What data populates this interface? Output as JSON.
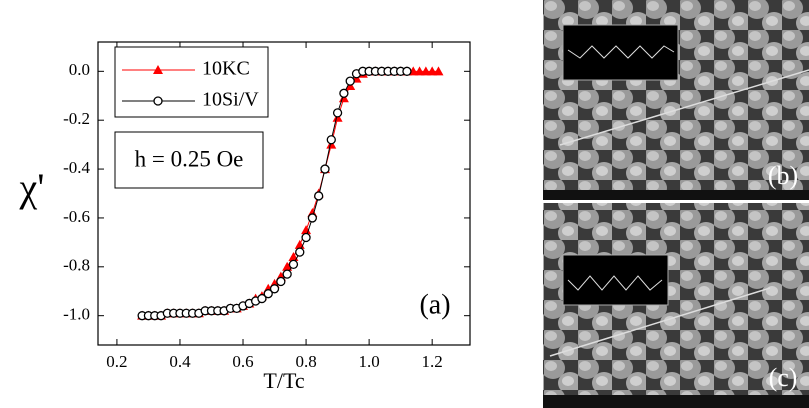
{
  "chart_data": {
    "type": "scatter-line",
    "x_label": "T/Tc",
    "y_label": "χ'",
    "annotation": "h = 0.25 Oe",
    "panel_label": "(a)",
    "xlim": [
      0.14,
      1.32
    ],
    "ylim": [
      -1.12,
      0.12
    ],
    "xticks": [
      0.2,
      0.4,
      0.6,
      0.8,
      {
        "value": 1.0,
        "label": "1.0"
      },
      1.2
    ],
    "yticks": [
      {
        "value": 0,
        "label": "0.0"
      },
      -0.2,
      -0.4,
      -0.6,
      -0.8,
      {
        "value": -1.0,
        "label": "-1.0"
      }
    ],
    "legend": "upper left",
    "series": [
      {
        "name": "10KC",
        "color": "#ff0000",
        "marker": "triangle",
        "x": [
          0.28,
          0.3,
          0.32,
          0.34,
          0.36,
          0.38,
          0.4,
          0.42,
          0.44,
          0.46,
          0.48,
          0.5,
          0.52,
          0.54,
          0.56,
          0.58,
          0.6,
          0.62,
          0.64,
          0.66,
          0.68,
          0.7,
          0.72,
          0.74,
          0.76,
          0.78,
          0.8,
          0.82,
          0.84,
          0.86,
          0.88,
          0.9,
          0.92,
          0.94,
          0.96,
          0.98,
          1.0,
          1.02,
          1.04,
          1.06,
          1.08,
          1.1,
          1.12,
          1.14,
          1.16,
          1.18,
          1.2,
          1.22
        ],
        "values": [
          -1.0,
          -1.0,
          -1.0,
          -1.0,
          -0.99,
          -0.99,
          -0.99,
          -0.99,
          -0.99,
          -0.99,
          -0.98,
          -0.98,
          -0.98,
          -0.98,
          -0.97,
          -0.97,
          -0.96,
          -0.95,
          -0.93,
          -0.92,
          -0.89,
          -0.87,
          -0.84,
          -0.8,
          -0.76,
          -0.71,
          -0.65,
          -0.58,
          -0.5,
          -0.4,
          -0.3,
          -0.19,
          -0.11,
          -0.06,
          -0.03,
          -0.01,
          0,
          0,
          0,
          0,
          0,
          0,
          0,
          0,
          0,
          0,
          0,
          0
        ]
      },
      {
        "name": "10Si/V",
        "color": "#000000",
        "marker": "circle",
        "x": [
          0.28,
          0.3,
          0.32,
          0.34,
          0.36,
          0.38,
          0.4,
          0.42,
          0.44,
          0.46,
          0.48,
          0.5,
          0.52,
          0.54,
          0.56,
          0.58,
          0.6,
          0.62,
          0.64,
          0.66,
          0.68,
          0.7,
          0.72,
          0.74,
          0.76,
          0.78,
          0.8,
          0.82,
          0.84,
          0.86,
          0.88,
          0.9,
          0.92,
          0.94,
          0.96,
          0.98,
          1.0,
          1.02,
          1.04,
          1.06,
          1.08,
          1.1,
          1.12
        ],
        "values": [
          -1.0,
          -1.0,
          -1.0,
          -1.0,
          -0.99,
          -0.99,
          -0.99,
          -0.99,
          -0.99,
          -0.99,
          -0.98,
          -0.98,
          -0.98,
          -0.98,
          -0.97,
          -0.97,
          -0.96,
          -0.95,
          -0.94,
          -0.93,
          -0.91,
          -0.89,
          -0.86,
          -0.83,
          -0.79,
          -0.74,
          -0.68,
          -0.6,
          -0.51,
          -0.4,
          -0.28,
          -0.17,
          -0.09,
          -0.04,
          -0.01,
          0,
          0,
          0,
          0,
          0,
          0,
          0,
          0
        ]
      }
    ]
  },
  "images": [
    {
      "label": "(b)"
    },
    {
      "label": "(c)"
    }
  ]
}
